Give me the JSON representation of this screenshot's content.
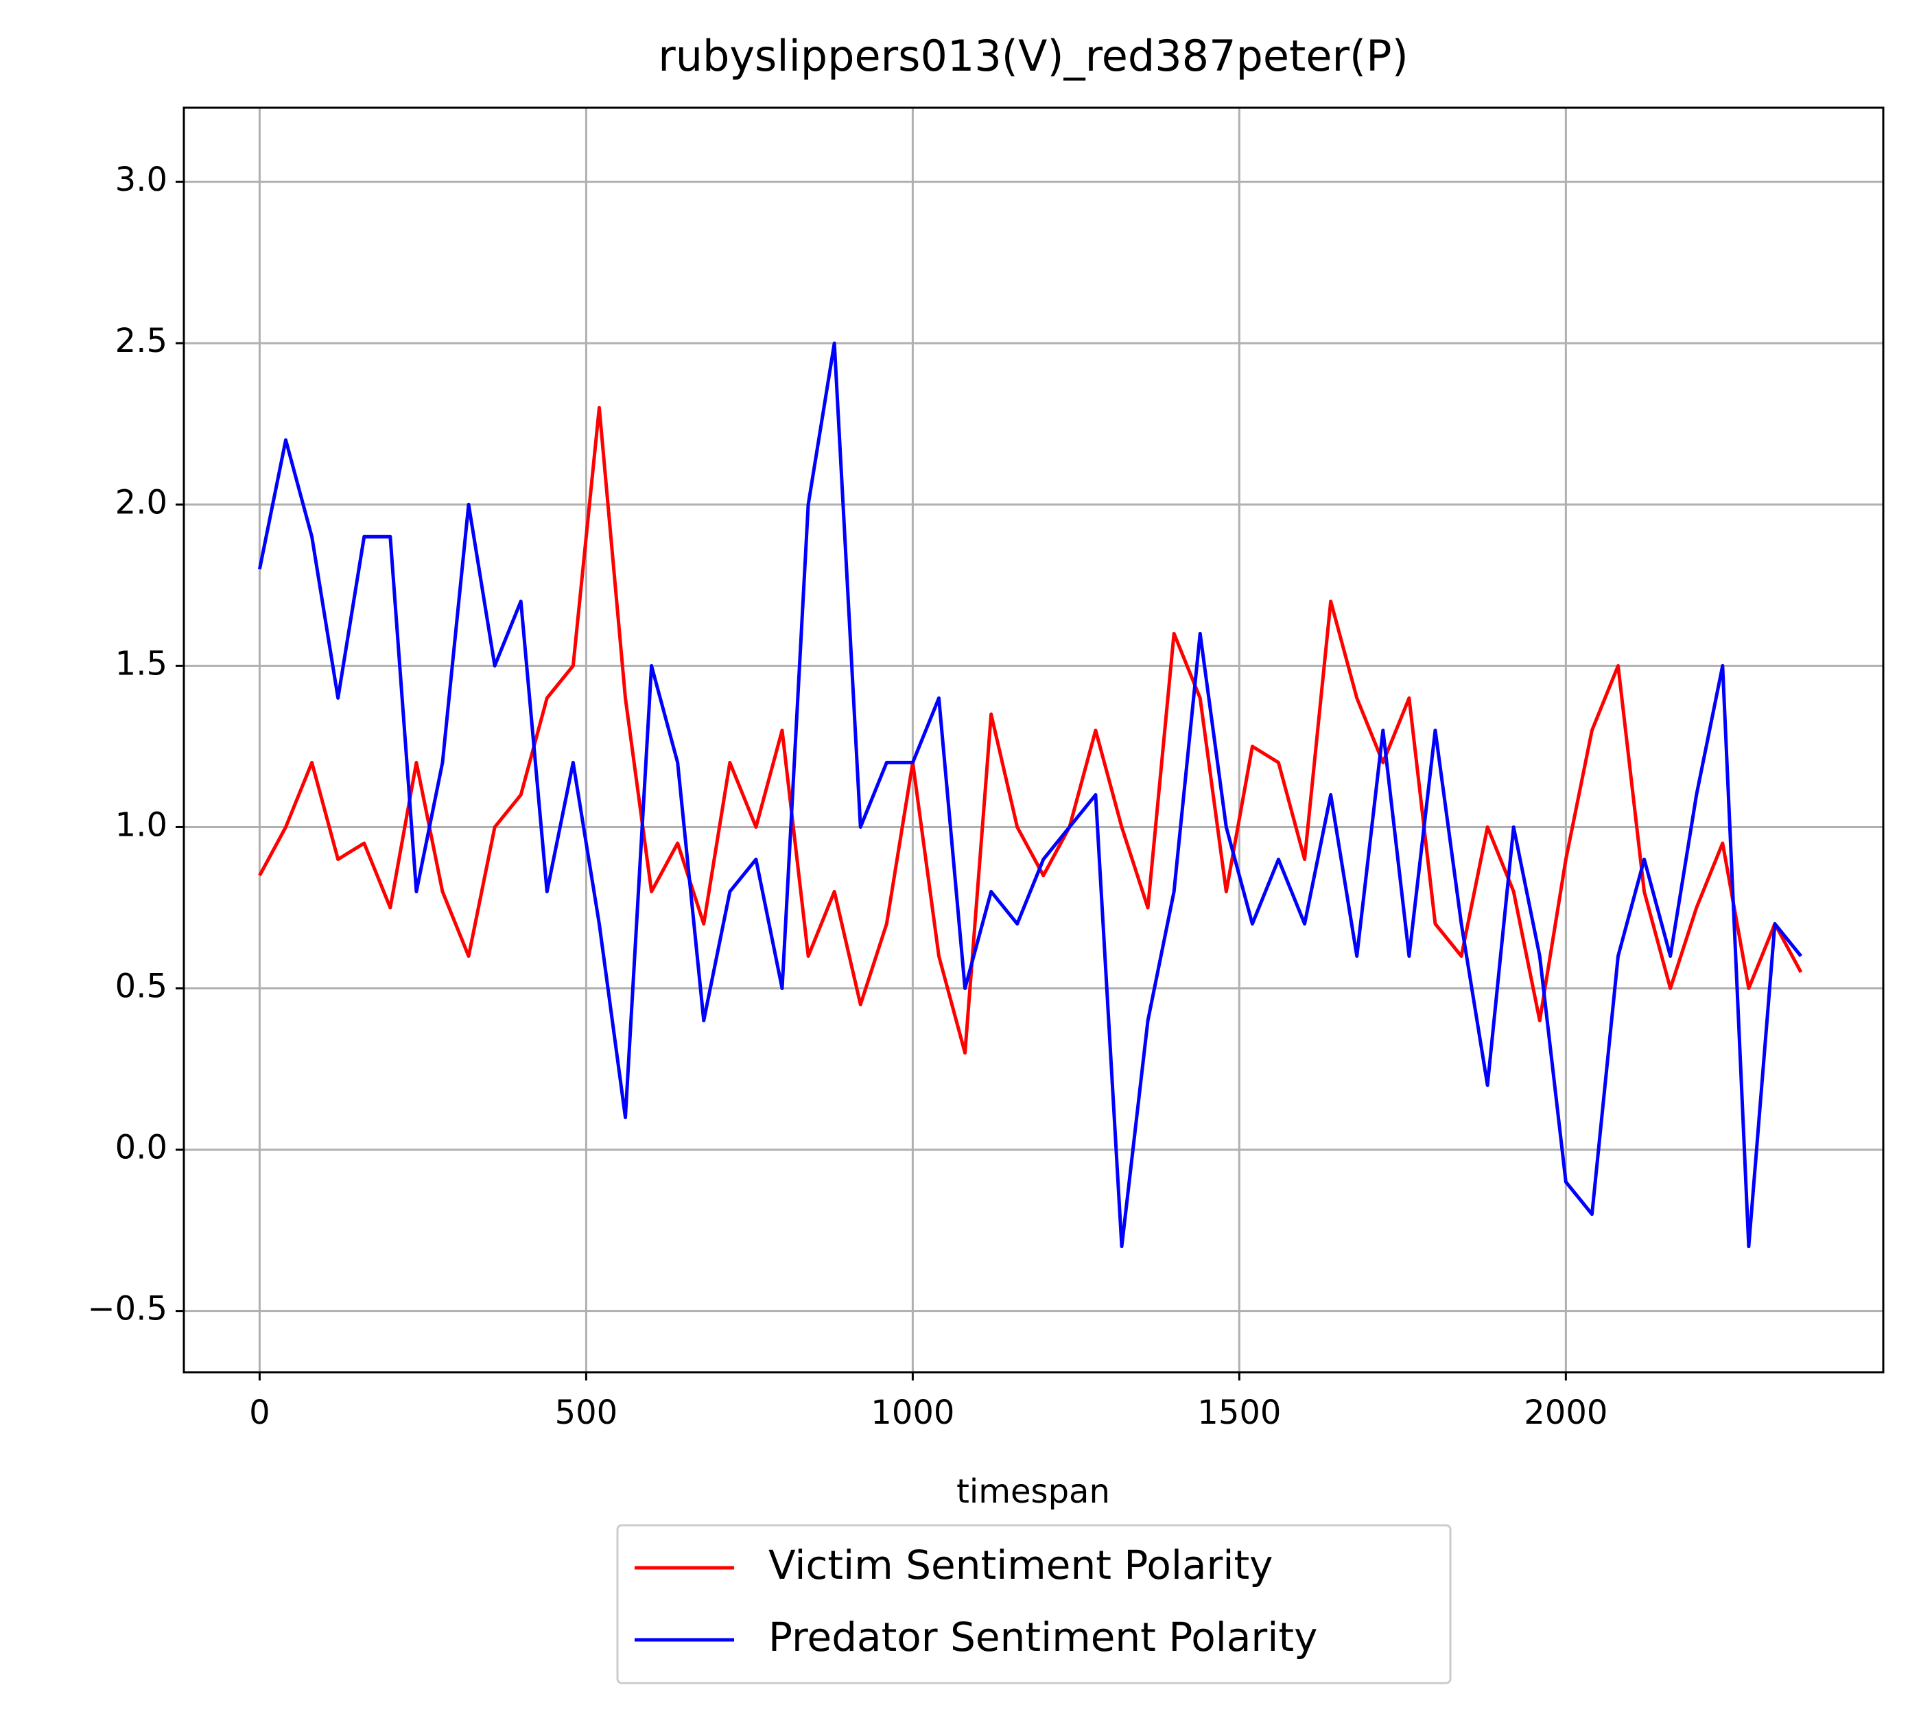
{
  "chart_data": {
    "type": "line",
    "title": "rubyslippers013(V)_red387peter(P)",
    "x_label": "timespan",
    "x": [
      0,
      40,
      80,
      120,
      160,
      200,
      240,
      280,
      320,
      360,
      400,
      440,
      480,
      520,
      560,
      600,
      640,
      680,
      720,
      760,
      800,
      840,
      880,
      920,
      960,
      1000,
      1040,
      1080,
      1120,
      1160,
      1200,
      1240,
      1280,
      1320,
      1360,
      1400,
      1440,
      1480,
      1520,
      1560,
      1600,
      1640,
      1680,
      1720,
      1760,
      1800,
      1840,
      1880,
      1920,
      1960,
      2000,
      2040,
      2080,
      2120,
      2160,
      2200,
      2240,
      2280,
      2320,
      2360
    ],
    "series": [
      {
        "name": "Victim Sentiment Polarity",
        "color": "#ff0000",
        "values": [
          0.85,
          1.0,
          1.2,
          0.9,
          0.95,
          0.75,
          1.2,
          0.8,
          0.6,
          1.0,
          1.1,
          1.4,
          1.5,
          2.3,
          1.4,
          0.8,
          0.95,
          0.7,
          1.2,
          1.0,
          1.3,
          0.6,
          0.8,
          0.45,
          0.7,
          1.2,
          0.6,
          0.3,
          1.35,
          1.0,
          0.85,
          1.0,
          1.3,
          1.0,
          0.75,
          1.6,
          1.4,
          0.8,
          1.25,
          1.2,
          0.9,
          1.7,
          1.4,
          1.2,
          1.4,
          0.7,
          0.6,
          1.0,
          0.8,
          0.4,
          0.9,
          1.3,
          1.5,
          0.8,
          0.5,
          0.75,
          0.95,
          0.5,
          0.7,
          0.55
        ]
      },
      {
        "name": "Predator Sentiment Polarity",
        "color": "#0000ff",
        "values": [
          1.8,
          2.2,
          1.9,
          1.4,
          1.9,
          1.9,
          0.8,
          1.2,
          2.0,
          1.5,
          1.7,
          0.8,
          1.2,
          0.7,
          0.1,
          1.5,
          1.2,
          0.4,
          0.8,
          0.9,
          0.5,
          2.0,
          2.5,
          1.0,
          1.2,
          1.2,
          1.4,
          0.5,
          0.8,
          0.7,
          0.9,
          1.0,
          1.1,
          -0.3,
          0.4,
          0.8,
          1.6,
          1.0,
          0.7,
          0.9,
          0.7,
          1.1,
          0.6,
          1.3,
          0.6,
          1.3,
          0.7,
          0.2,
          1.0,
          0.6,
          -0.1,
          -0.2,
          0.6,
          0.9,
          0.6,
          1.1,
          1.5,
          -0.3,
          0.7,
          0.6
        ]
      }
    ],
    "xlim": [
      -116,
      2486
    ],
    "ylim": [
      -0.69,
      3.23
    ],
    "xticks": [
      0,
      500,
      1000,
      1500,
      2000
    ],
    "yticks": [
      {
        "value": -0.5,
        "label": "−0.5"
      },
      {
        "value": 0,
        "label": "0.0"
      },
      0.5,
      {
        "value": 1,
        "label": "1.0"
      },
      1.5,
      {
        "value": 2,
        "label": "2.0"
      },
      2.5,
      {
        "value": 3,
        "label": "3.0"
      }
    ],
    "grid": true,
    "legend": "below"
  }
}
